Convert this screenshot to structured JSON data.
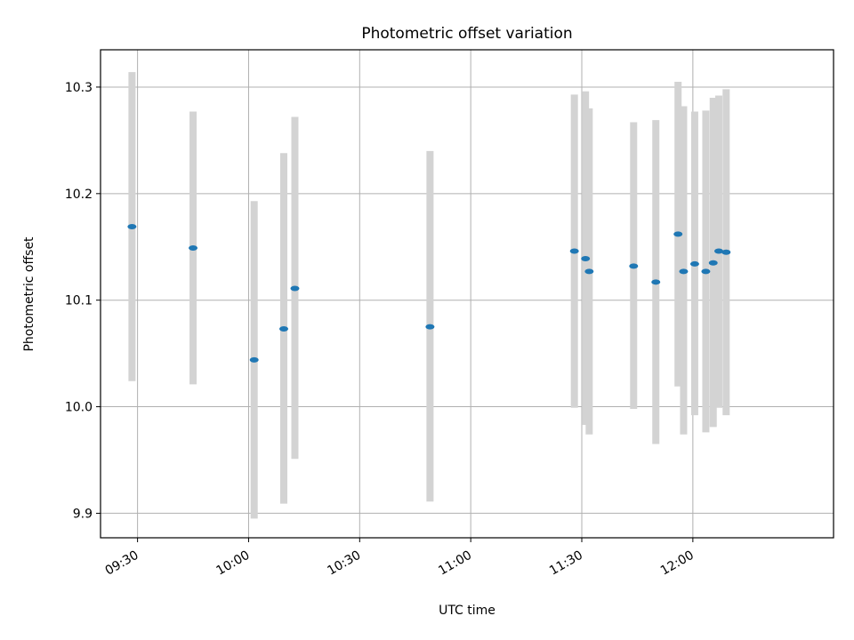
{
  "chart_data": {
    "type": "scatter",
    "title": "Photometric offset variation",
    "xlabel": "UTC time",
    "ylabel": "Photometric offset",
    "xlim": [
      "09:20",
      "12:38"
    ],
    "ylim": [
      9.877,
      10.335
    ],
    "x_ticks": [
      "09:30",
      "10:00",
      "10:30",
      "11:00",
      "11:30",
      "12:00"
    ],
    "y_ticks": [
      9.9,
      10.0,
      10.1,
      10.2,
      10.3
    ],
    "y_tick_labels": [
      "9.9",
      "10.0",
      "10.1",
      "10.2",
      "10.3"
    ],
    "grid": true,
    "colors": {
      "points": "#1f77b4",
      "error_bars": "#d3d3d3",
      "grid": "#b0b0b0"
    },
    "points": [
      {
        "x": "09:28:30",
        "y": 10.169,
        "yerr": [
          10.024,
          10.314
        ]
      },
      {
        "x": "09:45:00",
        "y": 10.149,
        "yerr": [
          10.021,
          10.277
        ]
      },
      {
        "x": "10:01:30",
        "y": 10.044,
        "yerr": [
          9.895,
          10.193
        ]
      },
      {
        "x": "10:09:30",
        "y": 10.073,
        "yerr": [
          9.909,
          10.238
        ]
      },
      {
        "x": "10:12:30",
        "y": 10.111,
        "yerr": [
          9.951,
          10.272
        ]
      },
      {
        "x": "10:49:00",
        "y": 10.075,
        "yerr": [
          9.911,
          10.24
        ]
      },
      {
        "x": "11:28:00",
        "y": 10.146,
        "yerr": [
          9.999,
          10.293
        ]
      },
      {
        "x": "11:31:00",
        "y": 10.139,
        "yerr": [
          9.983,
          10.296
        ]
      },
      {
        "x": "11:32:00",
        "y": 10.127,
        "yerr": [
          9.974,
          10.28
        ]
      },
      {
        "x": "11:44:00",
        "y": 10.132,
        "yerr": [
          9.998,
          10.267
        ]
      },
      {
        "x": "11:50:00",
        "y": 10.117,
        "yerr": [
          9.965,
          10.269
        ]
      },
      {
        "x": "11:56:00",
        "y": 10.162,
        "yerr": [
          10.019,
          10.305
        ]
      },
      {
        "x": "11:57:30",
        "y": 10.127,
        "yerr": [
          9.974,
          10.282
        ]
      },
      {
        "x": "12:00:30",
        "y": 10.134,
        "yerr": [
          9.992,
          10.277
        ]
      },
      {
        "x": "12:03:30",
        "y": 10.127,
        "yerr": [
          9.976,
          10.278
        ]
      },
      {
        "x": "12:05:30",
        "y": 10.135,
        "yerr": [
          9.981,
          10.29
        ]
      },
      {
        "x": "12:07:00",
        "y": 10.146,
        "yerr": [
          9.999,
          10.292
        ]
      },
      {
        "x": "12:09:00",
        "y": 10.145,
        "yerr": [
          9.992,
          10.298
        ]
      }
    ]
  }
}
